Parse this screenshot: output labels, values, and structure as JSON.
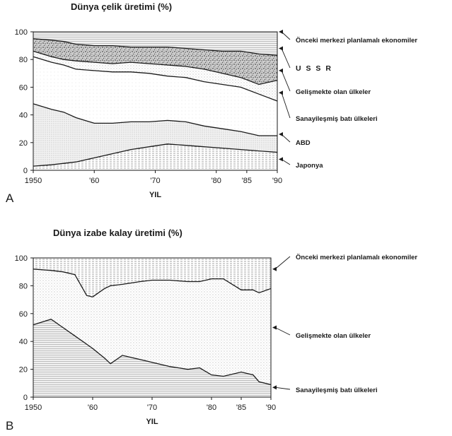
{
  "chart_data": [
    {
      "type": "area",
      "panel_label": "A",
      "title": "Dünya çelik üretimi (%)",
      "xlabel": "YIL",
      "ylabel": "",
      "xlim": [
        1950,
        1990
      ],
      "ylim": [
        0,
        100
      ],
      "x_tick_labels": [
        "1950",
        "'60",
        "'70",
        "'80",
        "'85",
        "'90"
      ],
      "y_tick_labels": [
        "0",
        "20",
        "40",
        "60",
        "80",
        "100"
      ],
      "grid": false,
      "legend": "right",
      "x": [
        1950,
        1953,
        1955,
        1957,
        1960,
        1963,
        1966,
        1969,
        1972,
        1975,
        1978,
        1981,
        1984,
        1987,
        1990
      ],
      "boundaries": [
        {
          "name": "Japonya",
          "values": [
            3,
            4,
            5,
            6,
            9,
            12,
            15,
            17,
            19,
            18,
            17,
            16,
            15,
            14,
            13
          ]
        },
        {
          "name": "ABD",
          "values": [
            48,
            44,
            42,
            38,
            34,
            34,
            35,
            35,
            36,
            35,
            32,
            30,
            28,
            25,
            25
          ]
        },
        {
          "name": "Sanayileşmiş batı ülkeleri",
          "values": [
            82,
            78,
            76,
            73,
            72,
            71,
            71,
            70,
            68,
            67,
            64,
            62,
            60,
            55,
            50
          ]
        },
        {
          "name": "Gelişmekte olan ülkeler",
          "values": [
            86,
            82,
            80,
            79,
            78,
            77,
            78,
            77,
            76,
            75,
            73,
            70,
            67,
            62,
            65
          ]
        },
        {
          "name": "U S S R",
          "values": [
            95,
            94,
            93,
            91,
            90,
            90,
            89,
            89,
            89,
            88,
            87,
            86,
            86,
            84,
            83
          ]
        },
        {
          "name": "Önceki merkezi planlamalı ekonomiler",
          "values": [
            100,
            100,
            100,
            100,
            100,
            100,
            100,
            100,
            100,
            100,
            100,
            100,
            100,
            100,
            100
          ]
        }
      ],
      "series": [
        {
          "name": "Önceki merkezi planlamalı ekonomiler"
        },
        {
          "name": "U S S R"
        },
        {
          "name": "Gelişmekte olan ülkeler"
        },
        {
          "name": "Sanayileşmiş batı ülkeleri"
        },
        {
          "name": "ABD"
        },
        {
          "name": "Japonya"
        }
      ]
    },
    {
      "type": "area",
      "panel_label": "B",
      "title": "Dünya izabe kalay üretimi (%)",
      "xlabel": "YIL",
      "ylabel": "",
      "xlim": [
        1950,
        1990
      ],
      "ylim": [
        0,
        100
      ],
      "x_tick_labels": [
        "1950",
        "'60",
        "'70",
        "'80",
        "'85",
        "'90"
      ],
      "y_tick_labels": [
        "0",
        "20",
        "40",
        "60",
        "80",
        "100"
      ],
      "grid": false,
      "legend": "right",
      "x": [
        1950,
        1953,
        1955,
        1957,
        1959,
        1960,
        1962,
        1963,
        1965,
        1968,
        1970,
        1973,
        1976,
        1978,
        1980,
        1982,
        1985,
        1987,
        1988,
        1990
      ],
      "boundaries": [
        {
          "name": "Sanayileşmiş batı ülkeleri",
          "values": [
            52,
            56,
            50,
            44,
            38,
            35,
            28,
            24,
            30,
            27,
            25,
            22,
            20,
            21,
            16,
            15,
            18,
            16,
            11,
            9
          ]
        },
        {
          "name": "Gelişmekte olan ülkeler",
          "values": [
            92,
            91,
            90,
            88,
            73,
            72,
            78,
            80,
            81,
            83,
            84,
            84,
            83,
            83,
            85,
            85,
            77,
            77,
            75,
            78
          ]
        },
        {
          "name": "Önceki merkezi planlamalı ekonomiler",
          "values": [
            100,
            100,
            100,
            100,
            100,
            100,
            100,
            100,
            100,
            100,
            100,
            100,
            100,
            100,
            100,
            100,
            100,
            100,
            100,
            100
          ]
        }
      ],
      "series": [
        {
          "name": "Önceki merkezi planlamalı ekonomiler"
        },
        {
          "name": "Gelişmekte olan ülkeler"
        },
        {
          "name": "Sanayileşmiş batı ülkeleri"
        }
      ]
    }
  ]
}
